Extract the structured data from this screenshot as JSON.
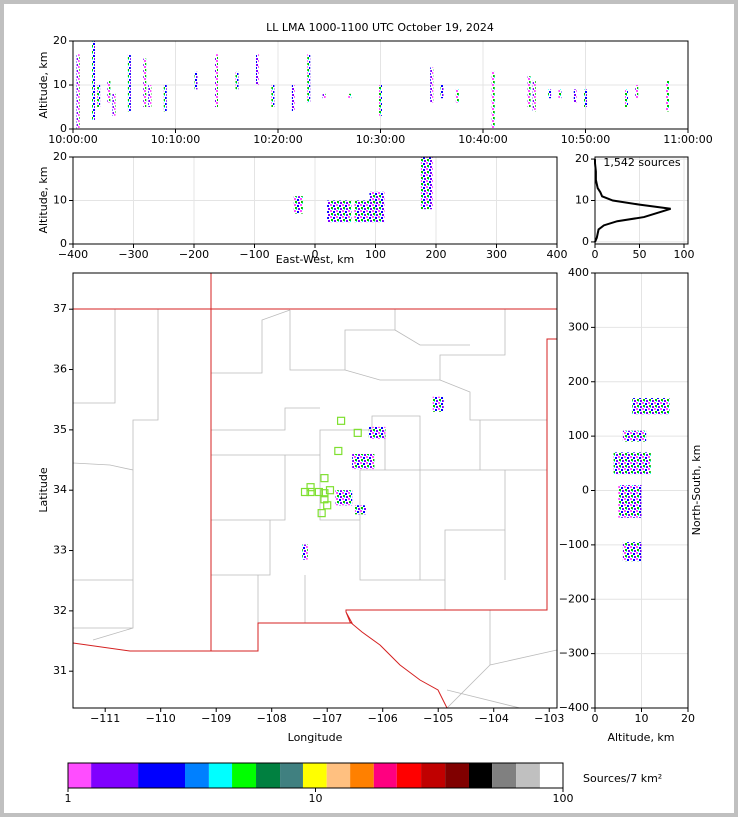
{
  "chart_data": [
    {
      "type": "timeheight",
      "title": "LL LMA 1000-1100 UTC October 19, 2024",
      "ylabel": "Altitude, km",
      "xlim": [
        "10:00:00",
        "11:00:00"
      ],
      "xticks": [
        "10:00:00",
        "10:10:00",
        "10:20:00",
        "10:30:00",
        "10:40:00",
        "10:50:00",
        "11:00:00"
      ],
      "ylim": [
        0,
        20
      ],
      "yticks": [
        0,
        10,
        20
      ],
      "grid": true,
      "x": [
        "10:00:30",
        "10:02:00",
        "10:02:30",
        "10:03:30",
        "10:04:00",
        "10:05:30",
        "10:07:00",
        "10:07:30",
        "10:09:00",
        "10:12:00",
        "10:14:00",
        "10:16:00",
        "10:18:00",
        "10:19:30",
        "10:21:30",
        "10:23:00",
        "10:24:30",
        "10:27:00",
        "10:30:00",
        "10:35:00",
        "10:36:00",
        "10:37:30",
        "10:41:00",
        "10:44:30",
        "10:45:00",
        "10:46:30",
        "10:47:30",
        "10:49:00",
        "10:50:00",
        "10:54:00",
        "10:55:00",
        "10:58:00"
      ],
      "low": [
        0,
        2,
        5,
        6,
        3,
        4,
        5,
        5,
        4,
        9,
        5,
        9,
        10,
        5,
        4,
        6,
        7,
        7,
        3,
        6,
        7,
        6,
        0,
        5,
        4,
        7,
        7,
        6,
        5,
        5,
        7,
        4
      ],
      "high": [
        17,
        20,
        10,
        11,
        8,
        17,
        16,
        10,
        10,
        13,
        17,
        13,
        17,
        10,
        10,
        17,
        8,
        8,
        10,
        14,
        10,
        9,
        13,
        12,
        11,
        9,
        9,
        9,
        9,
        9,
        10,
        11
      ]
    },
    {
      "type": "boxes",
      "xlabel": "East-West, km",
      "ylabel": "Altitude, km",
      "xlim": [
        -400,
        400
      ],
      "xticks": [
        {
          "value": -400,
          "label": "−400"
        },
        {
          "value": -300,
          "label": "−300"
        },
        {
          "value": -200,
          "label": "−200"
        },
        {
          "value": -100,
          "label": "−100"
        },
        0,
        100,
        200,
        300,
        400
      ],
      "ylim": [
        0,
        20
      ],
      "yticks": [
        0,
        10,
        20
      ],
      "grid": true,
      "x_min": [
        -35,
        20,
        65,
        90,
        175
      ],
      "x_max": [
        -20,
        60,
        95,
        115,
        195
      ],
      "y_min": [
        7,
        5,
        5,
        5,
        8
      ],
      "y_max": [
        11,
        10,
        10,
        12,
        20
      ]
    },
    {
      "type": "profile",
      "annotation": "1,542 sources",
      "xlim": [
        0,
        104.5
      ],
      "xticks": [
        0,
        50,
        100
      ],
      "ylim": [
        -0.5,
        20.5
      ],
      "yticks": [
        0,
        10,
        20
      ],
      "grid": true,
      "x": [
        0,
        2,
        3,
        4,
        10,
        25,
        55,
        70,
        85,
        50,
        20,
        8,
        6,
        3,
        2,
        1,
        1,
        1,
        0.5,
        0,
        0
      ],
      "y": [
        0,
        1,
        2,
        3,
        4,
        5,
        6,
        7,
        8,
        9,
        10,
        11,
        12,
        13,
        14,
        15,
        16,
        17,
        18,
        19,
        20
      ]
    },
    {
      "type": "map",
      "xlabel": "Longitude",
      "ylabel": "Latitude",
      "xlim": [
        -111.58,
        -102.86
      ],
      "xticks": [
        {
          "value": -111,
          "label": "−111"
        },
        {
          "value": -110,
          "label": "−110"
        },
        {
          "value": -109,
          "label": "−109"
        },
        {
          "value": -108,
          "label": "−108"
        },
        {
          "value": -107,
          "label": "−107"
        },
        {
          "value": -106,
          "label": "−106"
        },
        {
          "value": -105,
          "label": "−105"
        },
        {
          "value": -104,
          "label": "−104"
        },
        {
          "value": -103,
          "label": "−103"
        }
      ],
      "ylim": [
        30.39,
        37.6
      ],
      "yticks": [
        31,
        32,
        33,
        34,
        35,
        36,
        37
      ],
      "grid": false,
      "x_min": [
        -105.1,
        -106.25,
        -106.55,
        -106.85,
        -106.5,
        -107.45
      ],
      "x_max": [
        -104.9,
        -105.95,
        -106.15,
        -106.55,
        -106.3,
        -107.35
      ],
      "y_min": [
        35.3,
        34.85,
        34.35,
        33.75,
        33.6,
        32.85
      ],
      "y_max": [
        35.55,
        35.05,
        34.6,
        34.0,
        33.75,
        33.1
      ],
      "stations": {
        "color": "#7fe030",
        "lon": [
          -106.75,
          -106.45,
          -106.8,
          -107.05,
          -107.3,
          -107.4,
          -107.3,
          -107.15,
          -107.05,
          -106.95,
          -107.05,
          -107.0,
          -107.1
        ],
        "lat": [
          35.15,
          34.95,
          34.65,
          34.2,
          34.05,
          33.97,
          33.97,
          33.97,
          33.95,
          34.0,
          33.85,
          33.75,
          33.62
        ]
      }
    },
    {
      "type": "boxes",
      "xlabel": "Altitude, km",
      "ylabel": "North-South, km",
      "xlim": [
        0,
        20
      ],
      "xticks": [
        0,
        10,
        20
      ],
      "ylim": [
        -400,
        400
      ],
      "yticks": [
        {
          "value": -400,
          "label": "−400"
        },
        {
          "value": -300,
          "label": "−300"
        },
        {
          "value": -200,
          "label": "−200"
        },
        {
          "value": -100,
          "label": "−100"
        },
        0,
        100,
        200,
        300,
        400
      ],
      "grid": true,
      "x_min": [
        8,
        6,
        4,
        5,
        6
      ],
      "x_max": [
        16,
        11,
        12,
        10,
        10
      ],
      "y_min": [
        140,
        90,
        30,
        -50,
        -130
      ],
      "y_max": [
        170,
        110,
        70,
        10,
        -95
      ]
    },
    {
      "type": "colorbar",
      "label": "Sources/7 km²",
      "log": true,
      "xlim": [
        1,
        100
      ],
      "xticks": [
        1,
        10,
        100
      ],
      "bounds": [
        1,
        1.24,
        1.92,
        2.97,
        3.71,
        4.6,
        5.75,
        7.19,
        8.9,
        11.1,
        13.8,
        17.2,
        21.3,
        26.7,
        33.4,
        41.7,
        51.7,
        64.6,
        80.7,
        100
      ],
      "colors": [
        "#ff4dff",
        "#8000ff",
        "#0000ff",
        "#0080ff",
        "#00ffff",
        "#00ff00",
        "#008040",
        "#408080",
        "#ffff00",
        "#ffc080",
        "#ff8000",
        "#ff0080",
        "#ff0000",
        "#c00000",
        "#800000",
        "#000000",
        "#808080",
        "#c0c0c0",
        "#ffffff"
      ]
    }
  ]
}
